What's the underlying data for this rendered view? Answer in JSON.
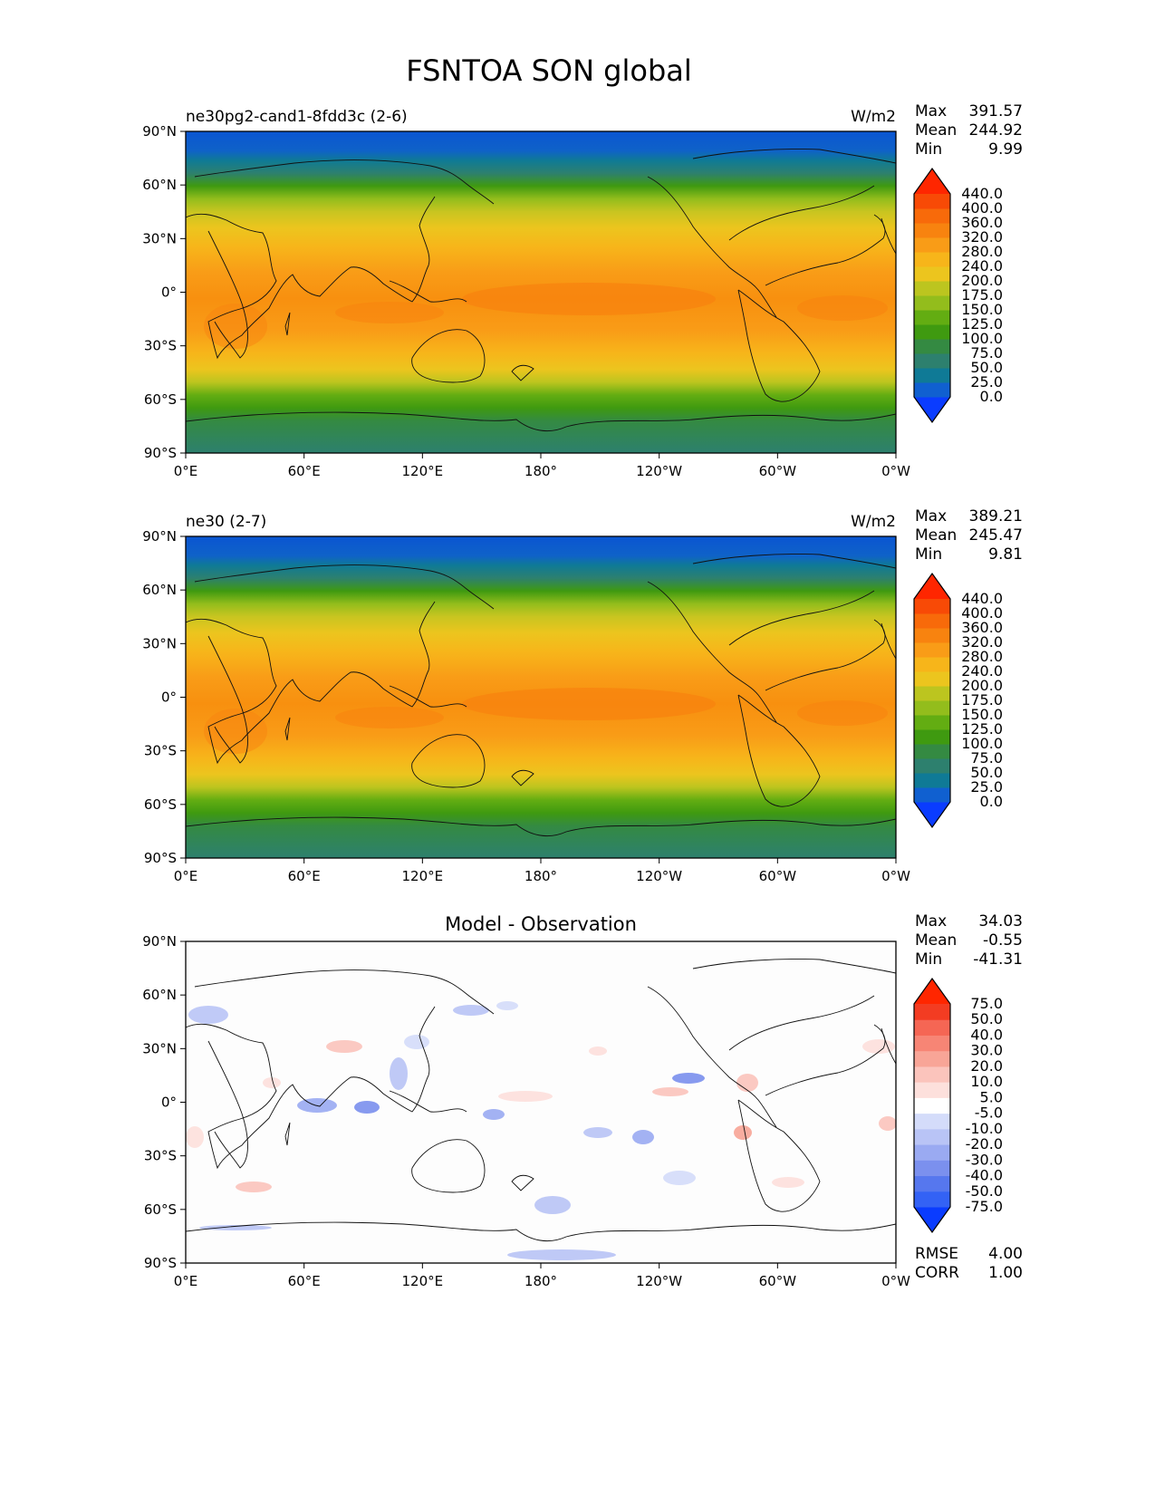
{
  "title": "FSNTOA SON global",
  "x_ticks": [
    "0°E",
    "60°E",
    "120°E",
    "180°",
    "120°W",
    "60°W",
    "0°W"
  ],
  "y_ticks": [
    "90°N",
    "60°N",
    "30°N",
    "0°",
    "30°S",
    "60°S",
    "90°S"
  ],
  "stat_labels": {
    "max": "Max",
    "mean": "Mean",
    "min": "Min",
    "rmse": "RMSE",
    "corr": "CORR"
  },
  "panels": [
    {
      "left_title": "ne30pg2-cand1-8fdd3c (2-6)",
      "right_title": "W/m2",
      "center_title": "",
      "stats": {
        "max": "391.57",
        "mean": "244.92",
        "min": "9.99"
      },
      "colorbar": {
        "levels": [
          "0.0",
          "25.0",
          "50.0",
          "75.0",
          "100.0",
          "125.0",
          "150.0",
          "175.0",
          "200.0",
          "240.0",
          "280.0",
          "320.0",
          "360.0",
          "400.0",
          "440.0"
        ],
        "colors": [
          "#0a3cff",
          "#1060d0",
          "#0f7a96",
          "#2d806e",
          "#348a42",
          "#3f9a10",
          "#63ad12",
          "#93bd1c",
          "#bcc51f",
          "#ecc51e",
          "#f7b51a",
          "#f99c17",
          "#f8830f",
          "#f86a0a",
          "#f84a06",
          "#ff2600"
        ]
      }
    },
    {
      "left_title": "ne30 (2-7)",
      "right_title": "W/m2",
      "center_title": "",
      "stats": {
        "max": "389.21",
        "mean": "245.47",
        "min": "9.81"
      },
      "colorbar": {
        "levels": [
          "0.0",
          "25.0",
          "50.0",
          "75.0",
          "100.0",
          "125.0",
          "150.0",
          "175.0",
          "200.0",
          "240.0",
          "280.0",
          "320.0",
          "360.0",
          "400.0",
          "440.0"
        ],
        "colors": [
          "#0a3cff",
          "#1060d0",
          "#0f7a96",
          "#2d806e",
          "#348a42",
          "#3f9a10",
          "#63ad12",
          "#93bd1c",
          "#bcc51f",
          "#ecc51e",
          "#f7b51a",
          "#f99c17",
          "#f8830f",
          "#f86a0a",
          "#f84a06",
          "#ff2600"
        ]
      }
    },
    {
      "left_title": "",
      "right_title": "",
      "center_title": "Model - Observation",
      "stats": {
        "max": "34.03",
        "mean": "-0.55",
        "min": "-41.31"
      },
      "extra_stats": {
        "rmse": "4.00",
        "corr": "1.00"
      },
      "colorbar": {
        "levels": [
          "-75.0",
          "-50.0",
          "-40.0",
          "-30.0",
          "-20.0",
          "-10.0",
          "-5.0",
          "5.0",
          "10.0",
          "20.0",
          "30.0",
          "40.0",
          "50.0",
          "75.0"
        ],
        "colors": [
          "#0a3cff",
          "#3362f5",
          "#5677ee",
          "#7b90ee",
          "#9aaaf2",
          "#b9c4f6",
          "#d4dcfa",
          "#ffffff",
          "#fde0dc",
          "#fbc4bc",
          "#f8a597",
          "#f78575",
          "#f56654",
          "#f33c22",
          "#ff2600"
        ]
      }
    }
  ]
}
